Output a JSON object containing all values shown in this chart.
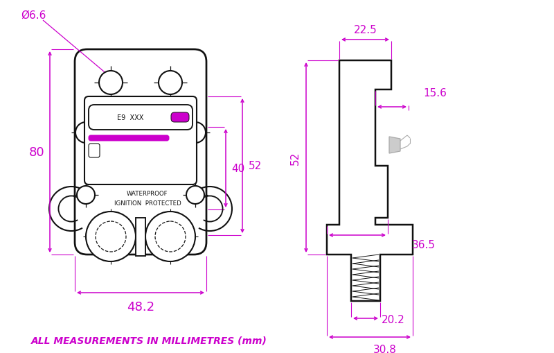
{
  "bg_color": "#ffffff",
  "dim_color": "#cc00cc",
  "line_color": "#111111",
  "gray_color": "#aaaaaa",
  "fig_width": 8.0,
  "fig_height": 5.1,
  "footer_text": "ALL MEASUREMENTS IN MILLIMETRES (mm)",
  "dim_6_6": "Ø6.6",
  "dim_80": "80",
  "dim_48_2": "48.2",
  "dim_40": "40",
  "dim_52": "52",
  "dim_22_5": "22.5",
  "dim_15_6": "15.6",
  "dim_36_5": "36.5",
  "dim_20_2": "20.2",
  "dim_30_8": "30.8",
  "label_e9": "E9  XXX",
  "label_wp": "WATERPROOF",
  "label_ip": "IGNITION  PROTECTED"
}
